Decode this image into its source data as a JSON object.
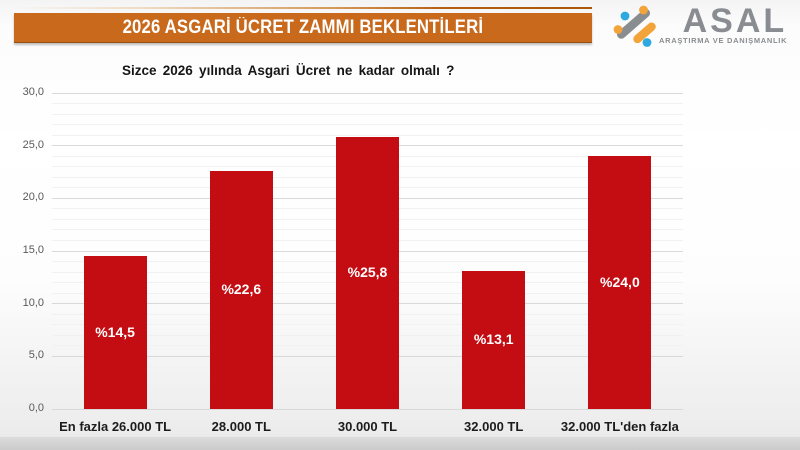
{
  "banner": {
    "title": "2026 ASGARİ ÜCRET ZAMMI BEKLENTİLERİ",
    "bg_color": "#C8691C"
  },
  "logo": {
    "name": "ASAL",
    "subtitle": "ARAŞTIRMA VE DANIŞMANLIK",
    "colors": {
      "gray": "#8A8D90",
      "orange": "#F2A43A",
      "blue": "#2BA9E0"
    }
  },
  "chart_data": {
    "type": "bar",
    "title": "Sizce 2026 yılında Asgari Ücret ne kadar olmalı ?",
    "categories": [
      "En fazla 26.000 TL",
      "28.000 TL",
      "30.000 TL",
      "32.000 TL",
      "32.000 TL'den fazla"
    ],
    "values": [
      14.5,
      22.6,
      25.8,
      13.1,
      24.0
    ],
    "value_labels": [
      "%14,5",
      "%22,6",
      "%25,8",
      "%13,1",
      "%24,0"
    ],
    "bar_color": "#C40D12",
    "ylim": [
      0,
      30
    ],
    "ytick_step": 5,
    "ytick_labels": [
      "0,0",
      "5,0",
      "10,0",
      "15,0",
      "20,0",
      "25,0",
      "30,0"
    ],
    "grid": true,
    "legend": false
  }
}
